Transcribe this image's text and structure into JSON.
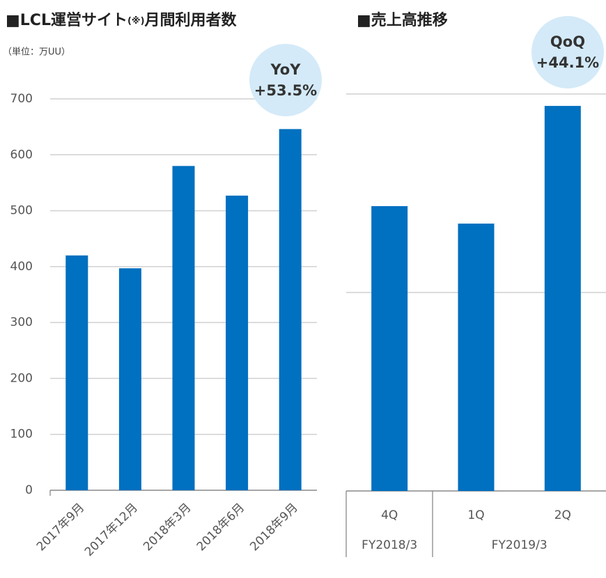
{
  "chart_data": [
    {
      "type": "bar",
      "title_segments": [
        "■LCL運営サイト",
        "(※)",
        "月間利用者数"
      ],
      "unit_label": "（単位：万UU）",
      "annotation": {
        "lines": [
          "YoY",
          "+53.5%"
        ]
      },
      "categories": [
        "2017年9月",
        "2017年12月",
        "2018年3月",
        "2018年6月",
        "2018年9月"
      ],
      "values": [
        420,
        397,
        580,
        527,
        646
      ],
      "color": "#0070c0",
      "ylim": [
        0,
        700
      ],
      "yticks": [
        0,
        100,
        200,
        300,
        400,
        500,
        600,
        700
      ],
      "grid": true,
      "show_ytick_labels": true
    },
    {
      "type": "bar",
      "title": "■売上高推移",
      "annotation": {
        "lines": [
          "QoQ",
          "+44.1%"
        ]
      },
      "categories": [
        "4Q",
        "1Q",
        "2Q"
      ],
      "category_groups": [
        "FY2018/3",
        "FY2019/3",
        "FY2019/3"
      ],
      "values": [
        1.435,
        1.347,
        1.94
      ],
      "color": "#0070c0",
      "ylim": [
        0,
        2
      ],
      "yticks": [
        0,
        1,
        2
      ],
      "grid": true,
      "show_ytick_labels": false
    }
  ]
}
